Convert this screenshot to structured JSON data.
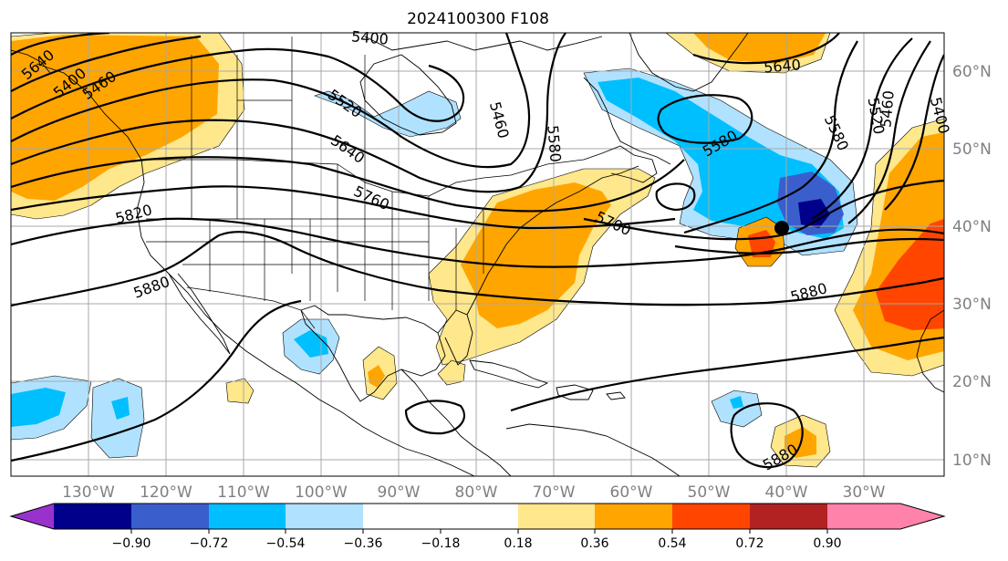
{
  "title": "2024100300 F108",
  "colors": {
    "c_n090": "#9932cc",
    "c_n072": "#00008b",
    "c_n054": "#3a5fcd",
    "c_n036": "#00bfff",
    "c_n018": "#b0e2ff",
    "c_zero": "#ffffff",
    "c_p018": "#ffe78c",
    "c_p036": "#ffa500",
    "c_p054": "#ff4500",
    "c_p072": "#b22222",
    "c_p090": "#ff82ab"
  },
  "lat_labels": [
    "60°N",
    "50°N",
    "40°N",
    "30°N",
    "20°N",
    "10°N"
  ],
  "lon_labels": [
    "130°W",
    "120°W",
    "110°W",
    "100°W",
    "90°W",
    "80°W",
    "70°W",
    "60°W",
    "50°W",
    "40°W",
    "30°W"
  ],
  "colorbar_ticks": [
    "−0.90",
    "−0.72",
    "−0.54",
    "−0.36",
    "−0.18",
    "0.18",
    "0.36",
    "0.54",
    "0.72",
    "0.90"
  ],
  "contour_labels": {
    "l5400a": "5400",
    "l5640a": "5640",
    "l5400b": "5400",
    "l5460a": "5460",
    "l5520a": "5520",
    "l5640b": "5640",
    "l5460b": "5460",
    "l5580a": "5580",
    "l5760": "5760",
    "l5820": "5820",
    "l5880a": "5880",
    "l5700": "5700",
    "l5580b": "5580",
    "l5640c": "5640",
    "l5580c": "5580",
    "l5520b": "5520",
    "l5460c": "5460",
    "l5400c": "5400",
    "l5880b": "5880",
    "l5880c": "5880"
  }
}
